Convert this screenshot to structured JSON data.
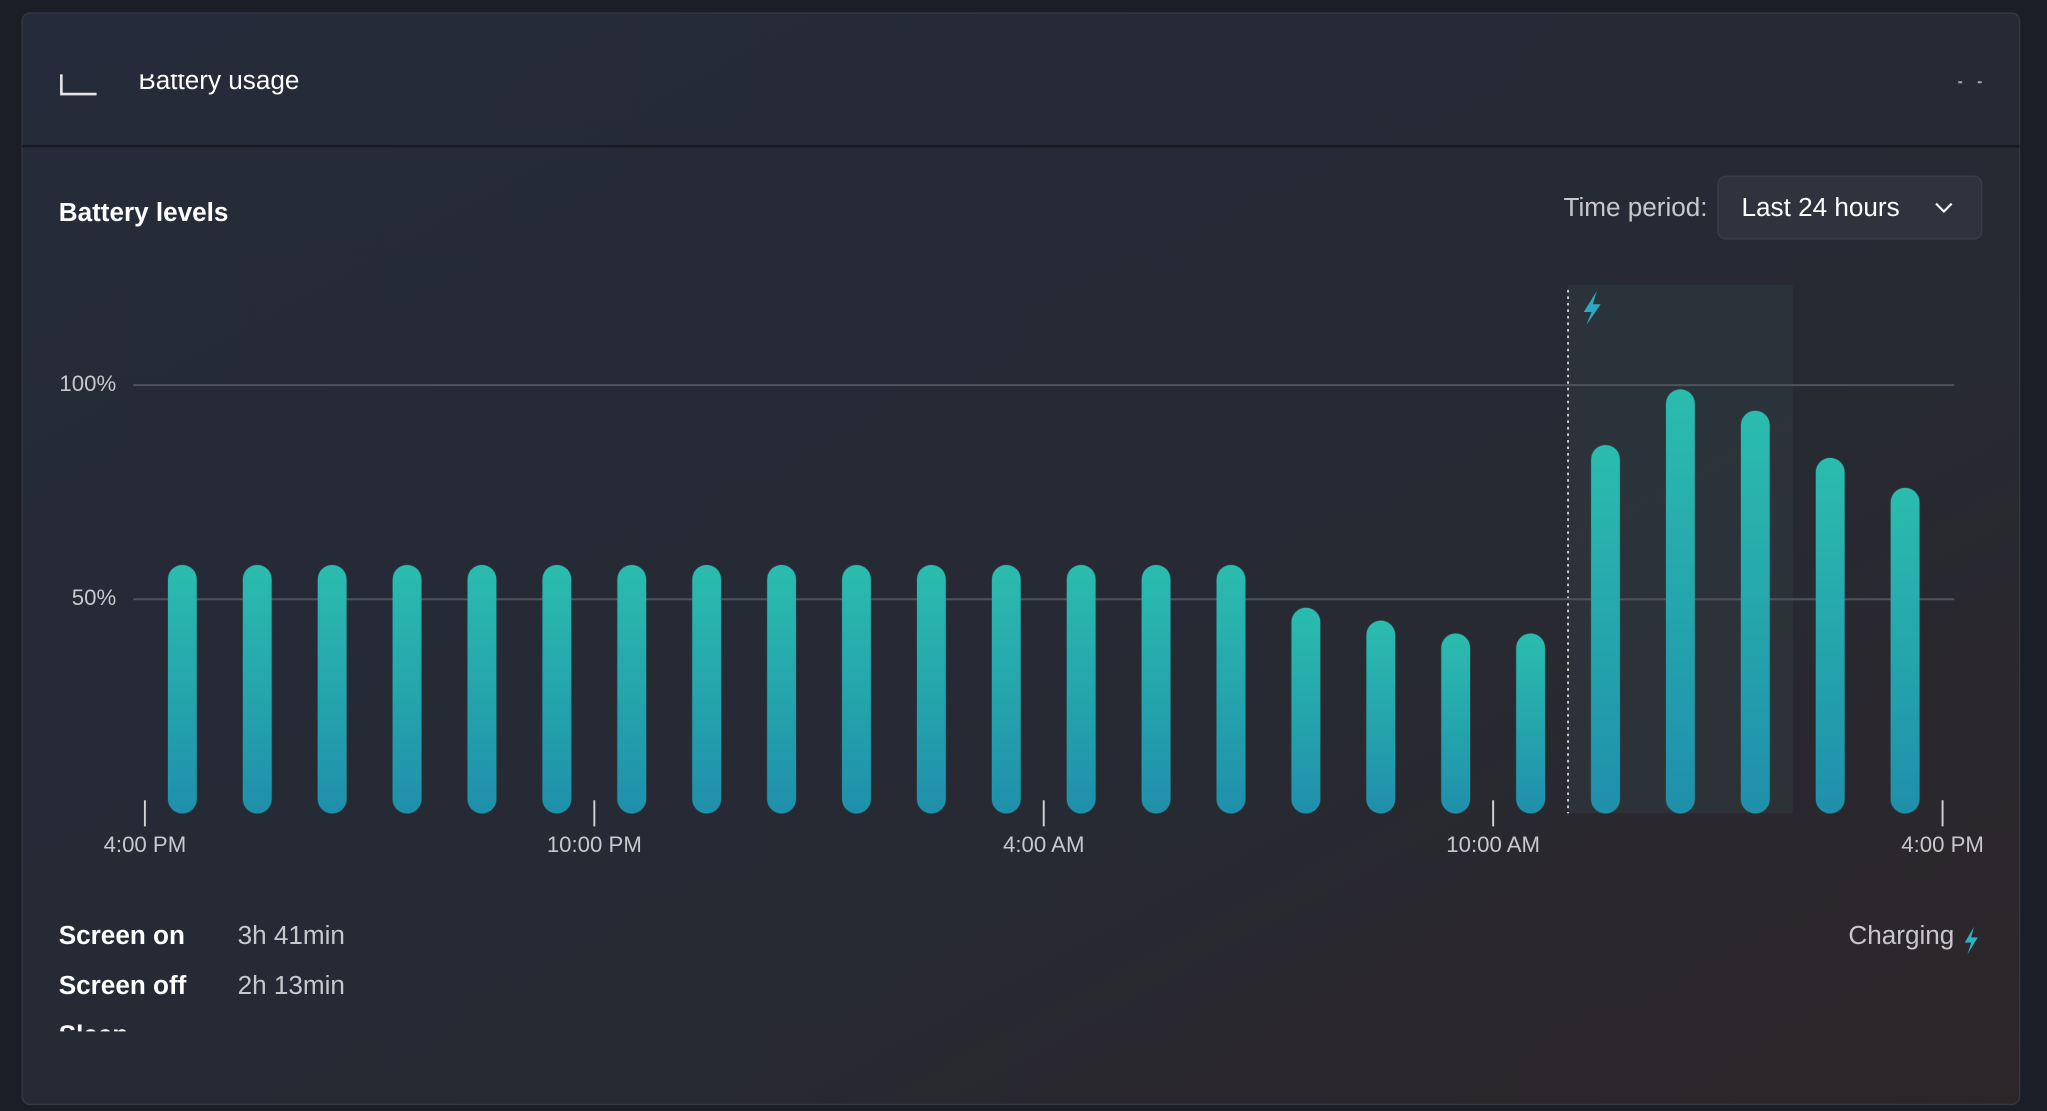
{
  "header": {
    "title": "Battery usage"
  },
  "time_period": {
    "label": "Time period:",
    "value": "Last 24 hours"
  },
  "chart_data": {
    "type": "bar",
    "title": "Battery levels",
    "categories": [
      null,
      null,
      null,
      null,
      null,
      null,
      null,
      null,
      null,
      null,
      null,
      null,
      null,
      null,
      null,
      null,
      null,
      null,
      null,
      null,
      null,
      null,
      null,
      null
    ],
    "values": [
      58,
      58,
      58,
      58,
      58,
      58,
      58,
      58,
      58,
      58,
      58,
      58,
      58,
      58,
      58,
      48,
      45,
      42,
      42,
      86,
      99,
      94,
      83,
      76
    ],
    "color": "#27aeae",
    "ylim": [
      0,
      100
    ],
    "yticks": [
      {
        "value": 50,
        "label": "50%"
      },
      {
        "value": 100,
        "label": "100%"
      }
    ],
    "xlim": [
      0,
      24
    ],
    "xticks": [
      {
        "value": 0,
        "label": "4:00 PM"
      },
      {
        "value": 6,
        "label": "10:00 PM"
      },
      {
        "value": 12,
        "label": "4:00 AM"
      },
      {
        "value": 18,
        "label": "10:00 AM"
      },
      {
        "value": 24,
        "label": "4:00 PM"
      }
    ],
    "charging_span": [
      19,
      22
    ],
    "legend": "Charging",
    "grid": true
  },
  "stats": [
    {
      "label": "Screen on",
      "value": "3h 41min"
    },
    {
      "label": "Screen off",
      "value": "2h 13min"
    },
    {
      "label": "Sleep",
      "value": "-"
    }
  ]
}
